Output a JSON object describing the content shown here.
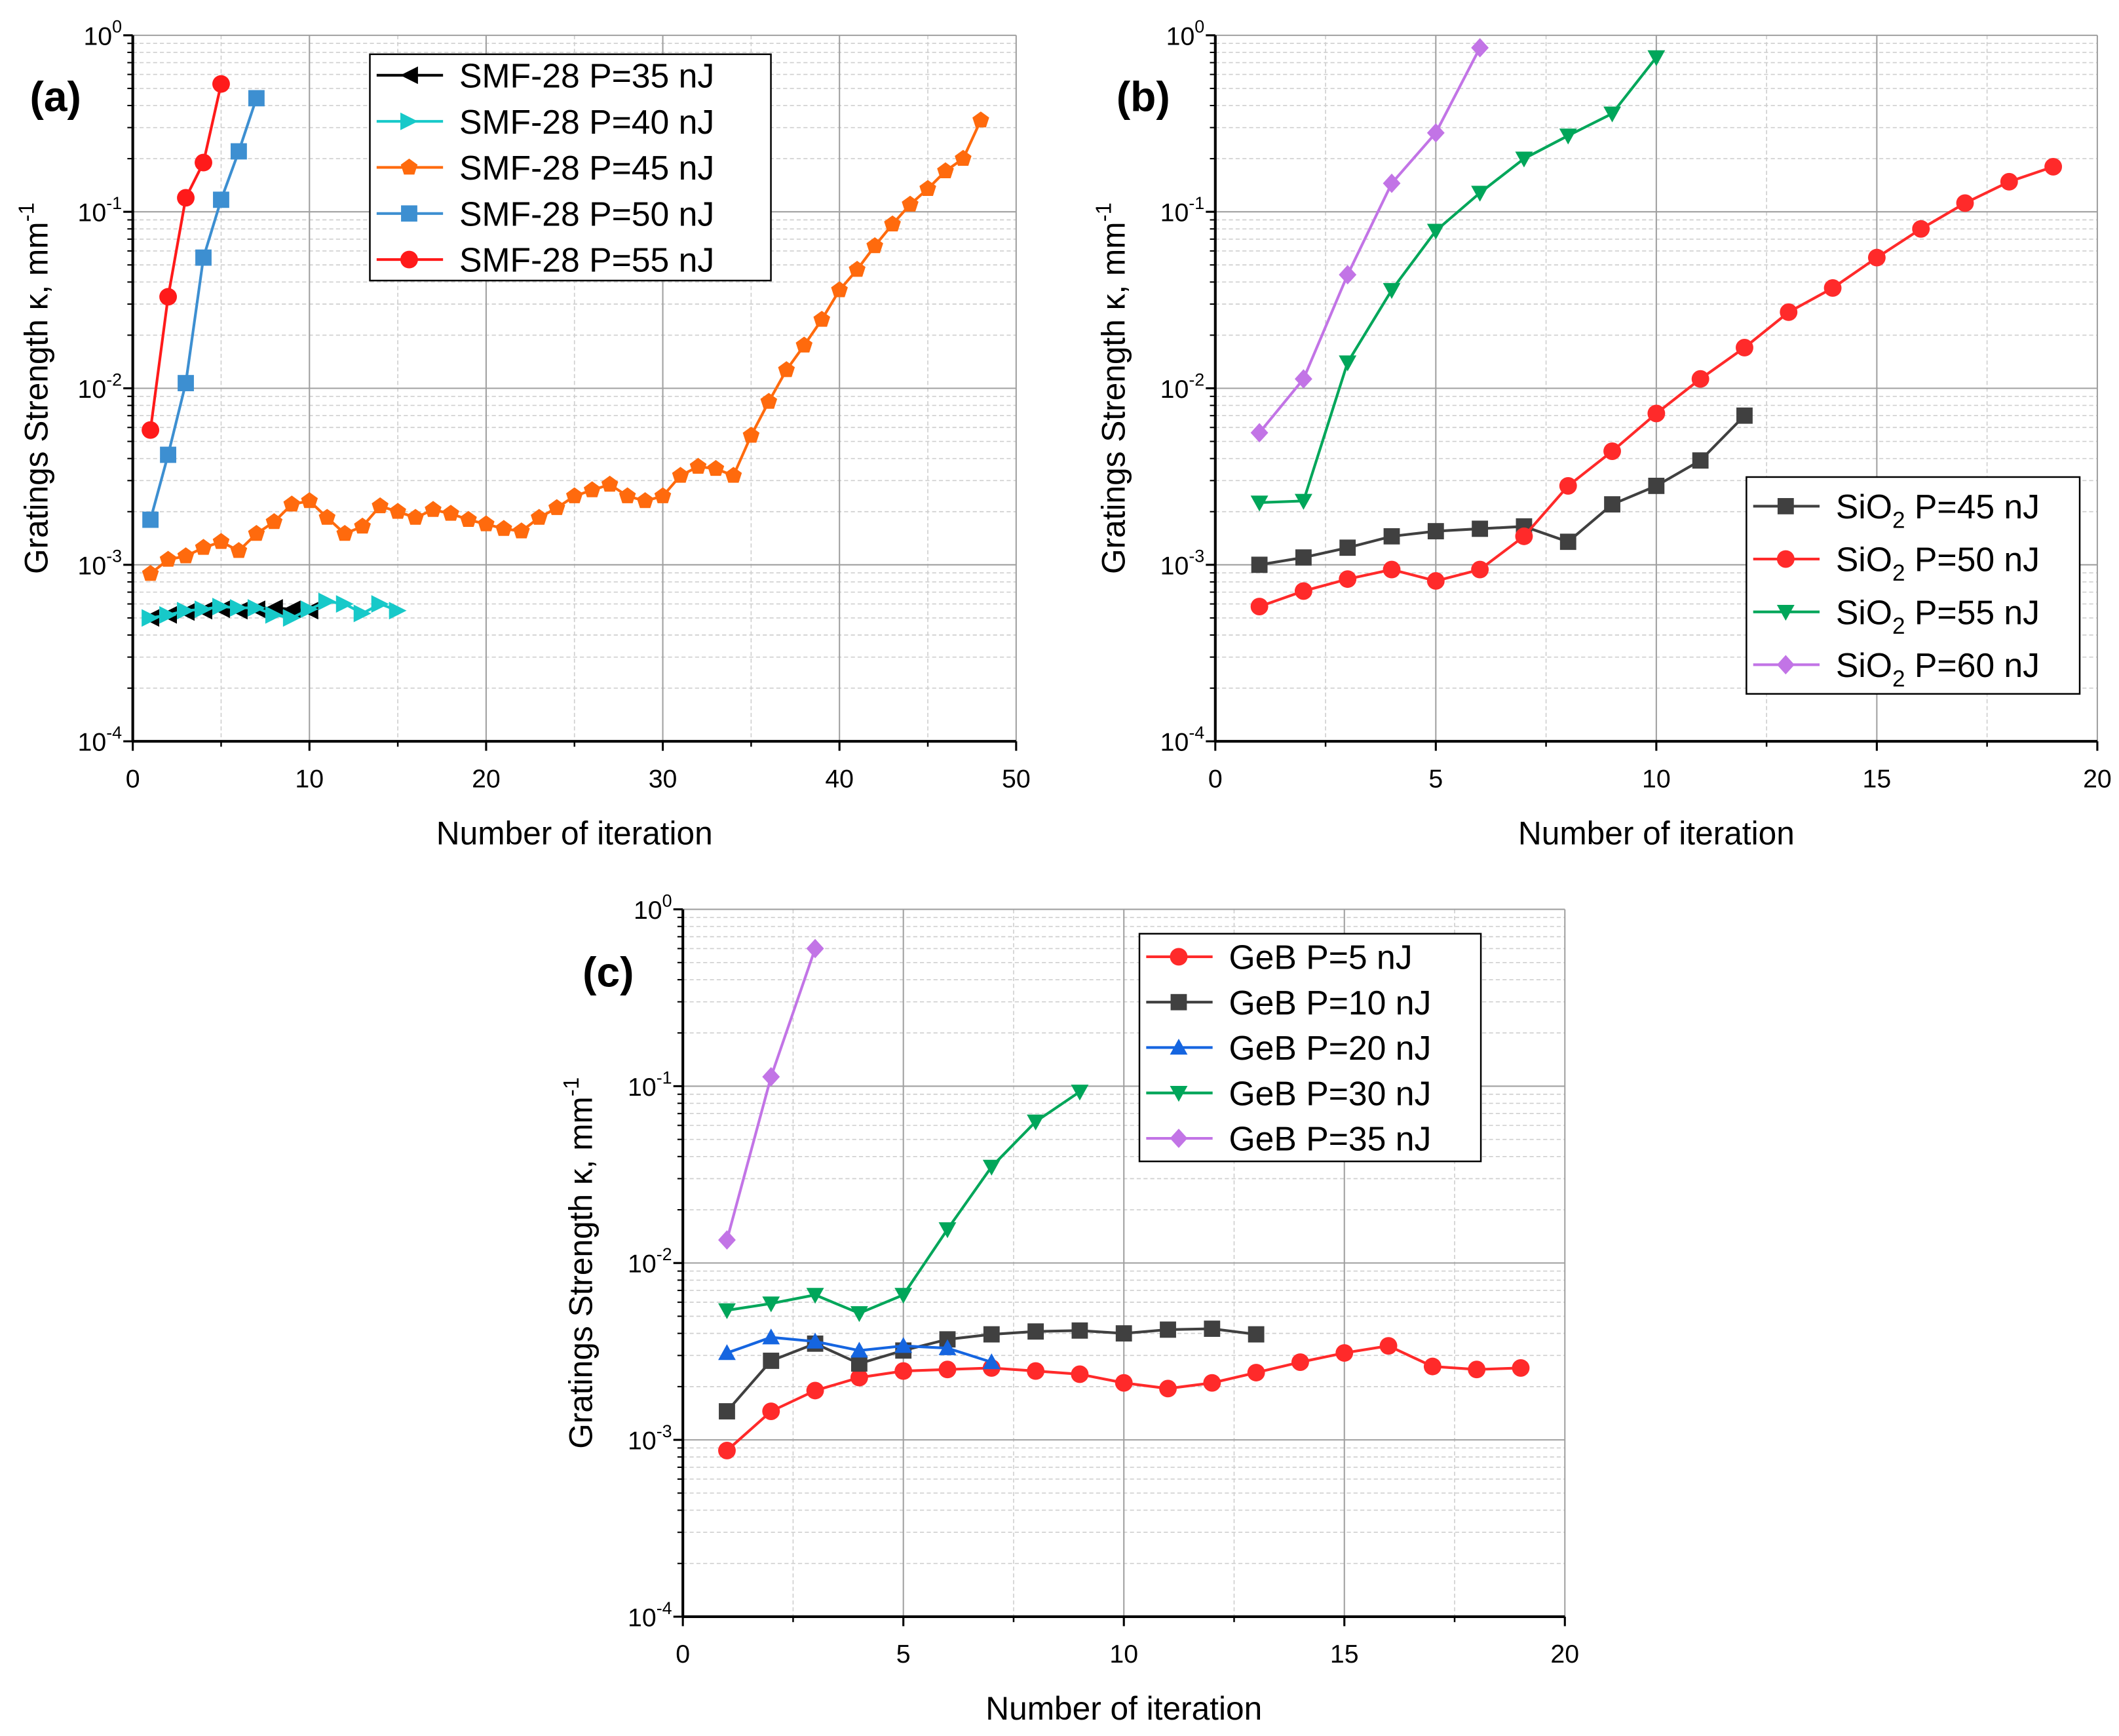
{
  "chart_data": [
    {
      "type": "line",
      "panel_label": "(a)",
      "xlabel": "Number of iteration",
      "ylabel": "Gratings Strength κ, mm",
      "ylabel_sup": "-1",
      "yscale": "log",
      "xlim": [
        0,
        50
      ],
      "ylim": [
        0.0001,
        1
      ],
      "xticks": [
        "0",
        "10",
        "20",
        "30",
        "40",
        "50"
      ],
      "yticks": [
        {
          "base": "10",
          "exp": "0"
        },
        {
          "base": "10",
          "exp": "-1"
        },
        {
          "base": "10",
          "exp": "-2"
        },
        {
          "base": "10",
          "exp": "-3"
        },
        {
          "base": "10",
          "exp": "-4"
        }
      ],
      "grid": true,
      "legend_position": "top-center",
      "series": [
        {
          "name": "SMF-28  P=35 nJ",
          "legend": {
            "prefix": "SMF-28  P=35 nJ",
            "sub": "",
            "suffix": ""
          },
          "color": "#000000",
          "marker": "triangle-left",
          "x": [
            1,
            2,
            3,
            4,
            5,
            6,
            7,
            8,
            9,
            10
          ],
          "y": [
            0.0005,
            0.00052,
            0.00054,
            0.00055,
            0.00056,
            0.00055,
            0.00056,
            0.00057,
            0.00056,
            0.00055
          ]
        },
        {
          "name": "SMF-28  P=40 nJ",
          "legend": {
            "prefix": "SMF-28  P=40 nJ",
            "sub": "",
            "suffix": ""
          },
          "color": "#17c9c9",
          "marker": "triangle-right",
          "x": [
            1,
            2,
            3,
            4,
            5,
            6,
            7,
            8,
            9,
            10,
            11,
            12,
            13,
            14,
            15
          ],
          "y": [
            0.0005,
            0.00052,
            0.00055,
            0.00056,
            0.00058,
            0.00057,
            0.00057,
            0.00052,
            0.0005,
            0.00056,
            0.00062,
            0.0006,
            0.00053,
            0.0006,
            0.00055
          ]
        },
        {
          "name": "SMF-28  P=45 nJ",
          "legend": {
            "prefix": "SMF-28  P=45 nJ",
            "sub": "",
            "suffix": ""
          },
          "color": "#ff6a0d",
          "marker": "pentagon",
          "x": [
            1,
            2,
            3,
            4,
            5,
            6,
            7,
            8,
            9,
            10,
            11,
            12,
            13,
            14,
            15,
            16,
            17,
            18,
            19,
            20,
            21,
            22,
            23,
            24,
            25,
            26,
            27,
            28,
            29,
            30,
            31,
            32,
            33,
            34,
            35,
            36,
            37,
            38,
            39,
            40,
            41,
            42,
            43,
            44,
            45,
            46,
            47,
            48
          ],
          "y": [
            0.00089,
            0.00107,
            0.00112,
            0.00125,
            0.00135,
            0.0012,
            0.0015,
            0.00175,
            0.0022,
            0.0023,
            0.00185,
            0.0015,
            0.00165,
            0.00215,
            0.002,
            0.00185,
            0.00205,
            0.00195,
            0.0018,
            0.0017,
            0.0016,
            0.00155,
            0.00185,
            0.0021,
            0.00245,
            0.00265,
            0.00285,
            0.00245,
            0.0023,
            0.00245,
            0.0032,
            0.0036,
            0.0035,
            0.0032,
            0.0054,
            0.0084,
            0.0127,
            0.0175,
            0.0245,
            0.036,
            0.047,
            0.064,
            0.085,
            0.11,
            0.135,
            0.17,
            0.2,
            0.33
          ]
        },
        {
          "name": "SMF-28  P=50 nJ",
          "legend": {
            "prefix": "SMF-28  P=50 nJ",
            "sub": "",
            "suffix": ""
          },
          "color": "#3d8fd1",
          "marker": "square",
          "x": [
            1,
            2,
            3,
            4,
            5,
            6,
            7
          ],
          "y": [
            0.0018,
            0.0042,
            0.0107,
            0.055,
            0.117,
            0.22,
            0.44
          ]
        },
        {
          "name": "SMF-28  P=55 nJ",
          "legend": {
            "prefix": "SMF-28  P=55 nJ",
            "sub": "",
            "suffix": ""
          },
          "color": "#ff1a1a",
          "marker": "circle",
          "x": [
            1,
            2,
            3,
            4,
            5
          ],
          "y": [
            0.0058,
            0.033,
            0.12,
            0.19,
            0.53
          ]
        }
      ]
    },
    {
      "type": "line",
      "panel_label": "(b)",
      "xlabel": "Number of iteration",
      "ylabel": "Gratings Strength κ, mm",
      "ylabel_sup": "-1",
      "yscale": "log",
      "xlim": [
        0,
        20
      ],
      "ylim": [
        0.0001,
        1
      ],
      "xticks": [
        "0",
        "5",
        "10",
        "15",
        "20"
      ],
      "yticks": [
        {
          "base": "10",
          "exp": "0"
        },
        {
          "base": "10",
          "exp": "-1"
        },
        {
          "base": "10",
          "exp": "-2"
        },
        {
          "base": "10",
          "exp": "-3"
        },
        {
          "base": "10",
          "exp": "-4"
        }
      ],
      "grid": true,
      "legend_position": "right-middle",
      "series": [
        {
          "name": "SiO2 P=45 nJ",
          "legend": {
            "prefix": "SiO",
            "sub": "2",
            "suffix": " P=45 nJ"
          },
          "color": "#404040",
          "marker": "square",
          "x": [
            1,
            2,
            3,
            4,
            5,
            6,
            7,
            8,
            9,
            10,
            11,
            12
          ],
          "y": [
            0.001,
            0.0011,
            0.00125,
            0.00145,
            0.00155,
            0.0016,
            0.00165,
            0.00135,
            0.0022,
            0.0028,
            0.0039,
            0.007
          ]
        },
        {
          "name": "SiO2 P=50 nJ",
          "legend": {
            "prefix": "SiO",
            "sub": "2",
            "suffix": " P=50 nJ"
          },
          "color": "#ff2a2a",
          "marker": "circle",
          "x": [
            1,
            2,
            3,
            4,
            5,
            6,
            7,
            8,
            9,
            10,
            11,
            12,
            13,
            14,
            15,
            16,
            17,
            18,
            19
          ],
          "y": [
            0.00058,
            0.00071,
            0.00083,
            0.00094,
            0.00081,
            0.00094,
            0.00145,
            0.0028,
            0.0044,
            0.0072,
            0.0113,
            0.017,
            0.027,
            0.037,
            0.055,
            0.08,
            0.112,
            0.148,
            0.18
          ]
        },
        {
          "name": "SiO2 P=55 nJ",
          "legend": {
            "prefix": "SiO",
            "sub": "2",
            "suffix": " P=55 nJ"
          },
          "color": "#00a65a",
          "marker": "triangle-down",
          "x": [
            1,
            2,
            3,
            4,
            5,
            6,
            7,
            8,
            9,
            10
          ],
          "y": [
            0.00225,
            0.0023,
            0.014,
            0.036,
            0.078,
            0.128,
            0.2,
            0.27,
            0.36,
            0.75
          ]
        },
        {
          "name": "SiO2 P=60 nJ",
          "legend": {
            "prefix": "SiO",
            "sub": "2",
            "suffix": " P=60 nJ"
          },
          "color": "#c274e6",
          "marker": "diamond",
          "x": [
            1,
            2,
            3,
            4,
            5,
            6
          ],
          "y": [
            0.0056,
            0.0113,
            0.044,
            0.145,
            0.28,
            0.85
          ]
        }
      ]
    },
    {
      "type": "line",
      "panel_label": "(c)",
      "xlabel": "Number of iteration",
      "ylabel": "Gratings Strength κ, mm",
      "ylabel_sup": "-1",
      "yscale": "log",
      "xlim": [
        0,
        20
      ],
      "ylim": [
        0.0001,
        1
      ],
      "xticks": [
        "0",
        "5",
        "10",
        "15",
        "20"
      ],
      "yticks": [
        {
          "base": "10",
          "exp": "0"
        },
        {
          "base": "10",
          "exp": "-1"
        },
        {
          "base": "10",
          "exp": "-2"
        },
        {
          "base": "10",
          "exp": "-3"
        },
        {
          "base": "10",
          "exp": "-4"
        }
      ],
      "grid": true,
      "legend_position": "top-right",
      "series": [
        {
          "name": "GeB  P=5 nJ",
          "legend": {
            "prefix": "GeB  P=5 nJ",
            "sub": "",
            "suffix": ""
          },
          "color": "#ff2a2a",
          "marker": "circle",
          "x": [
            1,
            2,
            3,
            4,
            5,
            6,
            7,
            8,
            9,
            10,
            11,
            12,
            13,
            14,
            15,
            16,
            17,
            18,
            19
          ],
          "y": [
            0.00087,
            0.00145,
            0.0019,
            0.00225,
            0.00245,
            0.0025,
            0.00255,
            0.00245,
            0.00235,
            0.0021,
            0.00195,
            0.0021,
            0.0024,
            0.00275,
            0.0031,
            0.0034,
            0.0026,
            0.0025,
            0.00255
          ]
        },
        {
          "name": "GeB  P=10 nJ",
          "legend": {
            "prefix": "GeB  P=10 nJ",
            "sub": "",
            "suffix": ""
          },
          "color": "#404040",
          "marker": "square",
          "x": [
            1,
            2,
            3,
            4,
            5,
            6,
            7,
            8,
            9,
            10,
            11,
            12,
            13
          ],
          "y": [
            0.00145,
            0.0028,
            0.0035,
            0.0027,
            0.0032,
            0.0037,
            0.00395,
            0.0041,
            0.00415,
            0.004,
            0.0042,
            0.00425,
            0.00395
          ]
        },
        {
          "name": "GeB  P=20 nJ",
          "legend": {
            "prefix": "GeB  P=20 nJ",
            "sub": "",
            "suffix": ""
          },
          "color": "#1565e0",
          "marker": "triangle-up",
          "x": [
            1,
            2,
            3,
            4,
            5,
            6,
            7
          ],
          "y": [
            0.0031,
            0.0038,
            0.0036,
            0.0032,
            0.0034,
            0.0033,
            0.00275
          ]
        },
        {
          "name": "GeB  P=30 nJ",
          "legend": {
            "prefix": "GeB  P=30 nJ",
            "sub": "",
            "suffix": ""
          },
          "color": "#00a65a",
          "marker": "triangle-down",
          "x": [
            1,
            2,
            3,
            4,
            5,
            6,
            7,
            8,
            9
          ],
          "y": [
            0.0054,
            0.0059,
            0.0066,
            0.0052,
            0.0066,
            0.0155,
            0.035,
            0.063,
            0.093
          ]
        },
        {
          "name": "GeB  P=35 nJ",
          "legend": {
            "prefix": "GeB  P=35 nJ",
            "sub": "",
            "suffix": ""
          },
          "color": "#c274e6",
          "marker": "diamond",
          "x": [
            1,
            2,
            3
          ],
          "y": [
            0.0135,
            0.113,
            0.6
          ]
        }
      ]
    }
  ]
}
